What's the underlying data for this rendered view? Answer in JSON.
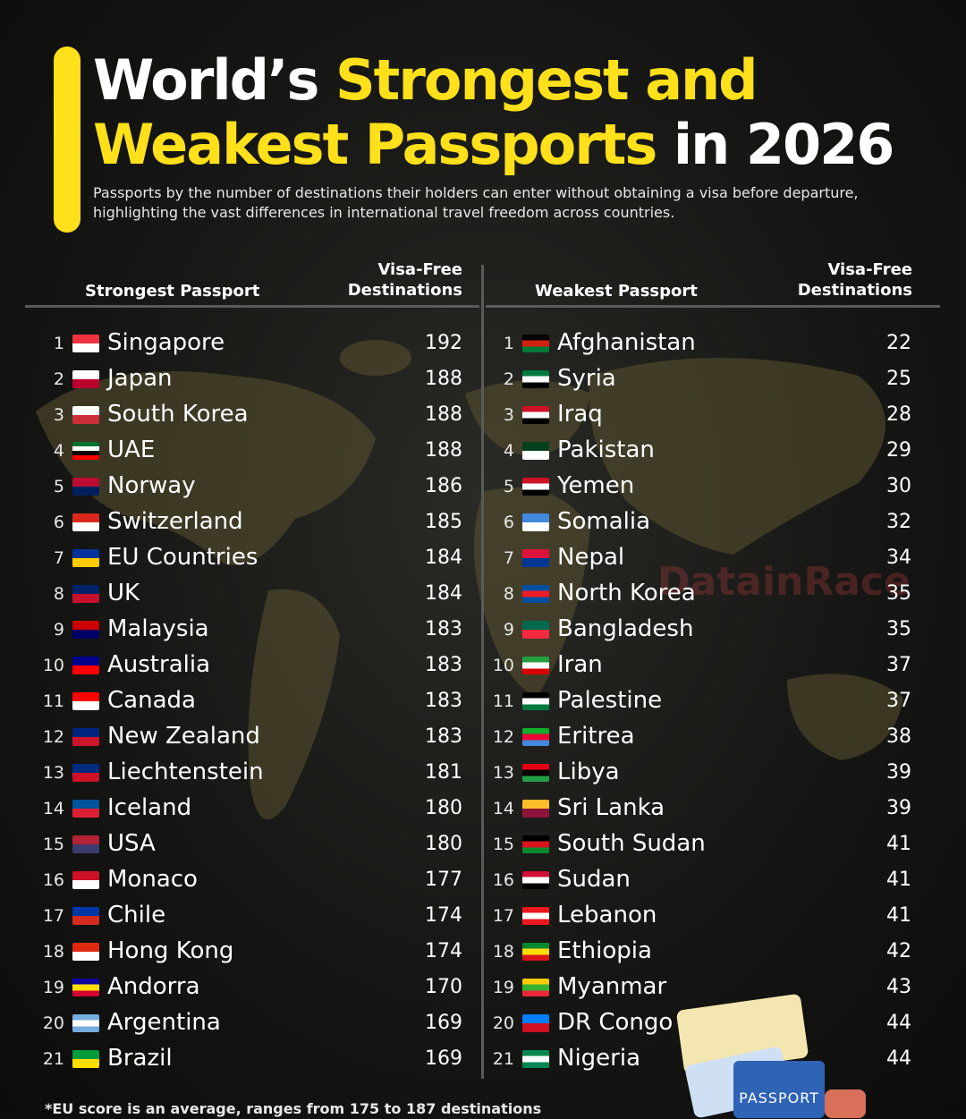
{
  "title": {
    "part1": "World’s ",
    "part2": "Strongest and",
    "part3": "Weakest Passports",
    "part4": " in 2026"
  },
  "subtitle": "Passports by the number of destinations their holders can enter without obtaining a visa before departure, highlighting the vast differences in international travel freedom across countries.",
  "strongest": {
    "header": "Strongest Passport",
    "value_header_line1": "Visa-Free",
    "value_header_line2": "Destinations",
    "rows": [
      {
        "rank": "1",
        "country": "Singapore",
        "value": "192",
        "flag": [
          "#ef3340",
          "#ffffff"
        ]
      },
      {
        "rank": "2",
        "country": "Japan",
        "value": "188",
        "flag": [
          "#ffffff",
          "#bc002d"
        ]
      },
      {
        "rank": "3",
        "country": "South Korea",
        "value": "188",
        "flag": [
          "#ffffff",
          "#cd2e3a"
        ]
      },
      {
        "rank": "4",
        "country": "UAE",
        "value": "188",
        "flag": [
          "#00732f",
          "#ffffff",
          "#000000",
          "#ff0000"
        ]
      },
      {
        "rank": "5",
        "country": "Norway",
        "value": "186",
        "flag": [
          "#ba0c2f",
          "#00205b"
        ]
      },
      {
        "rank": "6",
        "country": "Switzerland",
        "value": "185",
        "flag": [
          "#da291c",
          "#ffffff"
        ]
      },
      {
        "rank": "7",
        "country": "EU Countries",
        "value": "184",
        "flag": [
          "#003399",
          "#ffcc00"
        ]
      },
      {
        "rank": "8",
        "country": "UK",
        "value": "184",
        "flag": [
          "#012169",
          "#c8102e"
        ]
      },
      {
        "rank": "9",
        "country": "Malaysia",
        "value": "183",
        "flag": [
          "#cc0001",
          "#010066"
        ]
      },
      {
        "rank": "10",
        "country": "Australia",
        "value": "183",
        "flag": [
          "#00008b",
          "#ff0000"
        ]
      },
      {
        "rank": "11",
        "country": "Canada",
        "value": "183",
        "flag": [
          "#ff0000",
          "#ffffff"
        ]
      },
      {
        "rank": "12",
        "country": "New Zealand",
        "value": "183",
        "flag": [
          "#00247d",
          "#cc142b"
        ]
      },
      {
        "rank": "13",
        "country": "Liechtenstein",
        "value": "181",
        "flag": [
          "#002b7f",
          "#ce1126"
        ]
      },
      {
        "rank": "14",
        "country": "Iceland",
        "value": "180",
        "flag": [
          "#02529c",
          "#dc1e35"
        ]
      },
      {
        "rank": "15",
        "country": "USA",
        "value": "180",
        "flag": [
          "#b22234",
          "#3c3b6e"
        ]
      },
      {
        "rank": "16",
        "country": "Monaco",
        "value": "177",
        "flag": [
          "#ce1126",
          "#ffffff"
        ]
      },
      {
        "rank": "17",
        "country": "Chile",
        "value": "174",
        "flag": [
          "#0039a6",
          "#d52b1e"
        ]
      },
      {
        "rank": "18",
        "country": "Hong Kong",
        "value": "174",
        "flag": [
          "#de2910",
          "#ffffff"
        ]
      },
      {
        "rank": "19",
        "country": "Andorra",
        "value": "170",
        "flag": [
          "#10069f",
          "#fedf00",
          "#d50032"
        ]
      },
      {
        "rank": "20",
        "country": "Argentina",
        "value": "169",
        "flag": [
          "#74acdf",
          "#ffffff",
          "#74acdf"
        ]
      },
      {
        "rank": "21",
        "country": "Brazil",
        "value": "169",
        "flag": [
          "#009c3b",
          "#ffdf00"
        ]
      }
    ]
  },
  "weakest": {
    "header": "Weakest Passport",
    "value_header_line1": "Visa-Free",
    "value_header_line2": "Destinations",
    "rows": [
      {
        "rank": "1",
        "country": "Afghanistan",
        "value": "22",
        "flag": [
          "#000000",
          "#d32011",
          "#007a36"
        ]
      },
      {
        "rank": "2",
        "country": "Syria",
        "value": "25",
        "flag": [
          "#007a3d",
          "#ffffff",
          "#000000"
        ]
      },
      {
        "rank": "3",
        "country": "Iraq",
        "value": "28",
        "flag": [
          "#ce1126",
          "#ffffff",
          "#000000"
        ]
      },
      {
        "rank": "4",
        "country": "Pakistan",
        "value": "29",
        "flag": [
          "#01411c",
          "#ffffff"
        ]
      },
      {
        "rank": "5",
        "country": "Yemen",
        "value": "30",
        "flag": [
          "#ce1126",
          "#ffffff",
          "#000000"
        ]
      },
      {
        "rank": "6",
        "country": "Somalia",
        "value": "32",
        "flag": [
          "#4189dd",
          "#ffffff"
        ]
      },
      {
        "rank": "7",
        "country": "Nepal",
        "value": "34",
        "flag": [
          "#dc143c",
          "#003893"
        ]
      },
      {
        "rank": "8",
        "country": "North Korea",
        "value": "35",
        "flag": [
          "#024fa2",
          "#ed1c27",
          "#024fa2"
        ]
      },
      {
        "rank": "9",
        "country": "Bangladesh",
        "value": "35",
        "flag": [
          "#006a4e",
          "#f42a41"
        ]
      },
      {
        "rank": "10",
        "country": "Iran",
        "value": "37",
        "flag": [
          "#239f40",
          "#ffffff",
          "#da0000"
        ]
      },
      {
        "rank": "11",
        "country": "Palestine",
        "value": "37",
        "flag": [
          "#000000",
          "#ffffff",
          "#007a3d"
        ]
      },
      {
        "rank": "12",
        "country": "Eritrea",
        "value": "38",
        "flag": [
          "#12ad2b",
          "#ea0437",
          "#4189dd"
        ]
      },
      {
        "rank": "13",
        "country": "Libya",
        "value": "39",
        "flag": [
          "#e70013",
          "#000000",
          "#239e46"
        ]
      },
      {
        "rank": "14",
        "country": "Sri Lanka",
        "value": "39",
        "flag": [
          "#ffbe29",
          "#8d153a"
        ]
      },
      {
        "rank": "15",
        "country": "South Sudan",
        "value": "41",
        "flag": [
          "#000000",
          "#da121a",
          "#078930"
        ]
      },
      {
        "rank": "16",
        "country": "Sudan",
        "value": "41",
        "flag": [
          "#d21034",
          "#ffffff",
          "#000000"
        ]
      },
      {
        "rank": "17",
        "country": "Lebanon",
        "value": "41",
        "flag": [
          "#ee161f",
          "#ffffff",
          "#ee161f"
        ]
      },
      {
        "rank": "18",
        "country": "Ethiopia",
        "value": "42",
        "flag": [
          "#078930",
          "#fcdd09",
          "#da121a"
        ]
      },
      {
        "rank": "19",
        "country": "Myanmar",
        "value": "43",
        "flag": [
          "#fecb00",
          "#34b233",
          "#ea2839"
        ]
      },
      {
        "rank": "20",
        "country": "DR Congo",
        "value": "44",
        "flag": [
          "#007fff",
          "#ce1021"
        ]
      },
      {
        "rank": "21",
        "country": "Nigeria",
        "value": "44",
        "flag": [
          "#008751",
          "#ffffff",
          "#008751"
        ]
      }
    ]
  },
  "footnote": "*EU score is an average, ranges from 175 to 187 destinations",
  "watermark": "DatainRace",
  "passport_label": "PASSPORT",
  "colors": {
    "accent": "#ffe01a",
    "background": "#161614",
    "divider": "#5a5a5a"
  }
}
